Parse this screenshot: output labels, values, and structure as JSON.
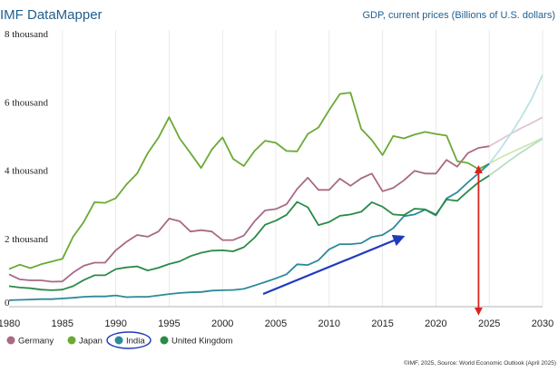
{
  "header": {
    "brand": "IMF DataMapper",
    "indicator": "GDP, current prices (Billions of U.S. dollars)"
  },
  "footer": {
    "source": "©IMF, 2025, Source: World Economic Outlook (April 2025)"
  },
  "legend": {
    "items": [
      {
        "label": "Germany",
        "color": "#a86a84"
      },
      {
        "label": "Japan",
        "color": "#6aaa34"
      },
      {
        "label": "India",
        "color": "#2b8a9a"
      },
      {
        "label": "United Kingdom",
        "color": "#2a8a48"
      }
    ]
  },
  "annotations": {
    "blue_arrow_color": "#1f3bbd",
    "red_arrow_color": "#d9231f",
    "red_arrow_x": 2024,
    "red_arrow_from_y": 4150,
    "red_arrow_to_y": 0
  },
  "chart_data": {
    "type": "line",
    "xlim": [
      1980,
      2030
    ],
    "ylim": [
      0,
      8000
    ],
    "y_ticks": [
      {
        "value": 8000,
        "label": "8 thousand"
      },
      {
        "value": 6000,
        "label": "6 thousand"
      },
      {
        "value": 4000,
        "label": "4 thousand"
      },
      {
        "value": 2000,
        "label": "2 thousand"
      },
      {
        "value": 0,
        "label": "0"
      }
    ],
    "x_ticks": [
      {
        "value": 1980,
        "label": "1980"
      },
      {
        "value": 1985,
        "label": "1985"
      },
      {
        "value": 1990,
        "label": "1990"
      },
      {
        "value": 1995,
        "label": "1995"
      },
      {
        "value": 2000,
        "label": "2000"
      },
      {
        "value": 2005,
        "label": "2005"
      },
      {
        "value": 2010,
        "label": "2010"
      },
      {
        "value": 2015,
        "label": "2015"
      },
      {
        "value": 2020,
        "label": "2020"
      },
      {
        "value": 2025,
        "label": "2025"
      },
      {
        "value": 2030,
        "label": "2030"
      }
    ],
    "grid": "vertical",
    "projection_start": 2025,
    "series": [
      {
        "name": "Germany",
        "color": "#a86a84",
        "projection_color": "#e0c6d2",
        "x": [
          1980,
          1981,
          1982,
          1983,
          1984,
          1985,
          1986,
          1987,
          1988,
          1989,
          1990,
          1991,
          1992,
          1993,
          1994,
          1995,
          1996,
          1997,
          1998,
          1999,
          2000,
          2001,
          2002,
          2003,
          2004,
          2005,
          2006,
          2007,
          2008,
          2009,
          2010,
          2011,
          2012,
          2013,
          2014,
          2015,
          2016,
          2017,
          2018,
          2019,
          2020,
          2021,
          2022,
          2023,
          2024,
          2025,
          2026,
          2027,
          2028,
          2029,
          2030
        ],
        "values": [
          950,
          800,
          770,
          770,
          730,
          740,
          1000,
          1200,
          1290,
          1290,
          1650,
          1900,
          2100,
          2050,
          2200,
          2580,
          2500,
          2200,
          2240,
          2200,
          1950,
          1950,
          2080,
          2500,
          2820,
          2860,
          3000,
          3450,
          3780,
          3420,
          3420,
          3750,
          3540,
          3760,
          3900,
          3380,
          3480,
          3700,
          3980,
          3900,
          3900,
          4300,
          4100,
          4500,
          4650,
          4700,
          4880,
          5060,
          5230,
          5380,
          5550
        ]
      },
      {
        "name": "Japan",
        "color": "#6aaa34",
        "projection_color": "#cde6b2",
        "x": [
          1980,
          1981,
          1982,
          1983,
          1984,
          1985,
          1986,
          1987,
          1988,
          1989,
          1990,
          1991,
          1992,
          1993,
          1994,
          1995,
          1996,
          1997,
          1998,
          1999,
          2000,
          2001,
          2002,
          2003,
          2004,
          2005,
          2006,
          2007,
          2008,
          2009,
          2010,
          2011,
          2012,
          2013,
          2014,
          2015,
          2016,
          2017,
          2018,
          2019,
          2020,
          2021,
          2022,
          2023,
          2024,
          2025,
          2026,
          2027,
          2028,
          2029,
          2030
        ],
        "values": [
          1100,
          1230,
          1130,
          1240,
          1320,
          1400,
          2050,
          2480,
          3060,
          3040,
          3180,
          3580,
          3900,
          4500,
          4950,
          5550,
          4920,
          4500,
          4060,
          4600,
          4960,
          4330,
          4120,
          4560,
          4860,
          4800,
          4560,
          4550,
          5060,
          5250,
          5760,
          6230,
          6270,
          5210,
          4880,
          4440,
          5000,
          4930,
          5040,
          5120,
          5060,
          5010,
          4260,
          4210,
          4030,
          4190,
          4360,
          4510,
          4650,
          4790,
          4940
        ]
      },
      {
        "name": "India",
        "color": "#2b8a9a",
        "projection_color": "#bde2e6",
        "x": [
          1980,
          1981,
          1982,
          1983,
          1984,
          1985,
          1986,
          1987,
          1988,
          1989,
          1990,
          1991,
          1992,
          1993,
          1994,
          1995,
          1996,
          1997,
          1998,
          1999,
          2000,
          2001,
          2002,
          2003,
          2004,
          2005,
          2006,
          2007,
          2008,
          2009,
          2010,
          2011,
          2012,
          2013,
          2014,
          2015,
          2016,
          2017,
          2018,
          2019,
          2020,
          2021,
          2022,
          2023,
          2024,
          2025,
          2026,
          2027,
          2028,
          2029,
          2030
        ],
        "values": [
          190,
          200,
          210,
          220,
          220,
          240,
          260,
          290,
          300,
          300,
          330,
          280,
          290,
          290,
          330,
          370,
          400,
          420,
          430,
          470,
          480,
          490,
          520,
          620,
          720,
          830,
          950,
          1240,
          1220,
          1360,
          1680,
          1830,
          1830,
          1860,
          2040,
          2100,
          2300,
          2650,
          2700,
          2840,
          2670,
          3170,
          3350,
          3640,
          3910,
          4190,
          4600,
          5050,
          5550,
          6100,
          6790
        ]
      },
      {
        "name": "United Kingdom",
        "color": "#2a8a48",
        "projection_color": "#b8dcc4",
        "x": [
          1980,
          1981,
          1982,
          1983,
          1984,
          1985,
          1986,
          1987,
          1988,
          1989,
          1990,
          1991,
          1992,
          1993,
          1994,
          1995,
          1996,
          1997,
          1998,
          1999,
          2000,
          2001,
          2002,
          2003,
          2004,
          2005,
          2006,
          2007,
          2008,
          2009,
          2010,
          2011,
          2012,
          2013,
          2014,
          2015,
          2016,
          2017,
          2018,
          2019,
          2020,
          2021,
          2022,
          2023,
          2024,
          2025,
          2026,
          2027,
          2028,
          2029,
          2030
        ],
        "values": [
          600,
          560,
          540,
          500,
          480,
          500,
          600,
          780,
          920,
          920,
          1100,
          1150,
          1180,
          1060,
          1140,
          1250,
          1330,
          1480,
          1580,
          1640,
          1650,
          1620,
          1740,
          2020,
          2400,
          2520,
          2690,
          3070,
          2910,
          2390,
          2480,
          2660,
          2700,
          2780,
          3060,
          2930,
          2700,
          2680,
          2870,
          2850,
          2700,
          3140,
          3100,
          3380,
          3640,
          3840,
          4070,
          4300,
          4520,
          4720,
          4920
        ]
      }
    ]
  }
}
